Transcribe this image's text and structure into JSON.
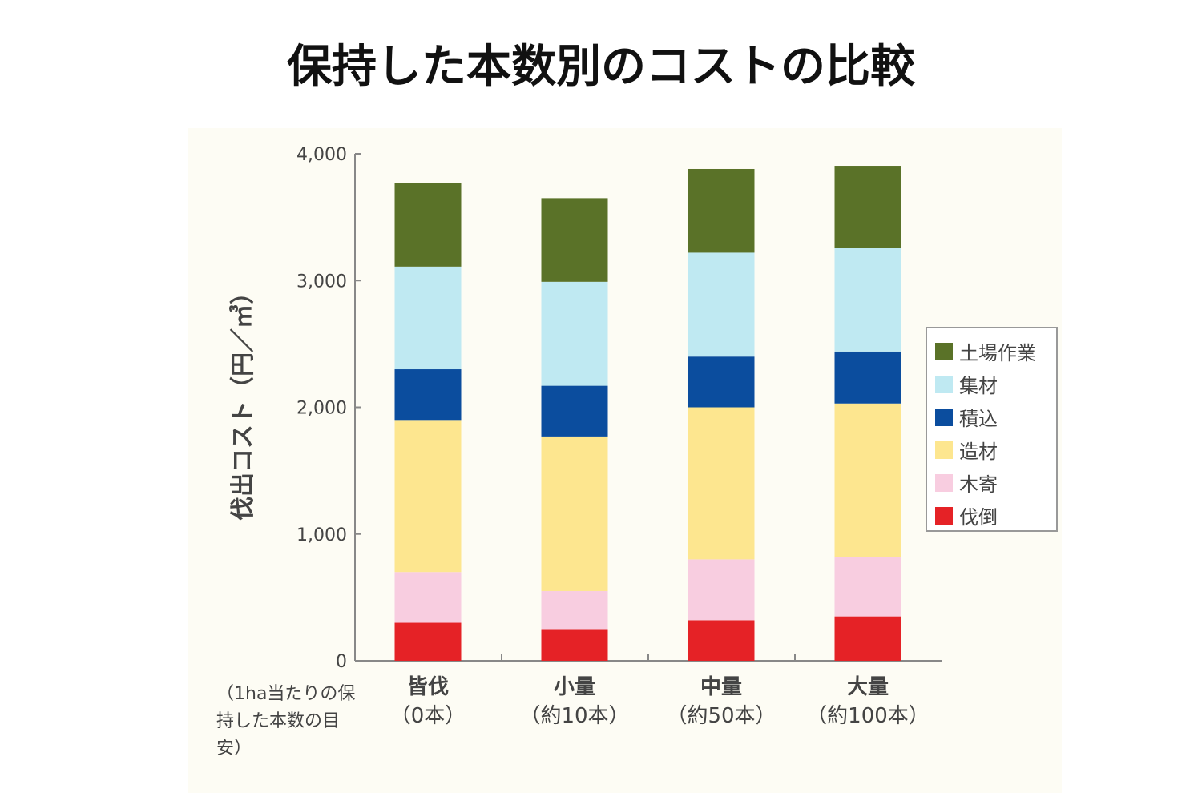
{
  "title": "保持した本数別のコストの比較",
  "chart_data": {
    "type": "bar",
    "stacked": true,
    "title": "保持した本数別のコストの比較",
    "ylabel": "伐出コスト（円／㎥）",
    "xlabel_note": "（1ha当たりの保持した本数の目安）",
    "ylim": [
      0,
      4000
    ],
    "yticks": [
      "0",
      "1,000",
      "2,000",
      "3,000",
      "4,000"
    ],
    "ytick_values": [
      0,
      1000,
      2000,
      3000,
      4000
    ],
    "categories": [
      {
        "name": "皆伐",
        "sub": "（0本）"
      },
      {
        "name": "小量",
        "sub": "（約10本）"
      },
      {
        "name": "中量",
        "sub": "（約50本）"
      },
      {
        "name": "大量",
        "sub": "（約100本）"
      }
    ],
    "series": [
      {
        "name": "伐倒",
        "color": "#e52226",
        "values": [
          300,
          250,
          320,
          350
        ]
      },
      {
        "name": "木寄",
        "color": "#f8cde0",
        "values": [
          400,
          300,
          480,
          470
        ]
      },
      {
        "name": "造材",
        "color": "#fde68f",
        "values": [
          1200,
          1220,
          1200,
          1210
        ]
      },
      {
        "name": "積込",
        "color": "#0b4d9e",
        "values": [
          400,
          400,
          400,
          410
        ]
      },
      {
        "name": "集材",
        "color": "#bfe9f2",
        "values": [
          810,
          820,
          820,
          815
        ]
      },
      {
        "name": "土場作業",
        "color": "#5a7228",
        "values": [
          660,
          660,
          660,
          650
        ]
      }
    ],
    "legend_position": "right"
  }
}
